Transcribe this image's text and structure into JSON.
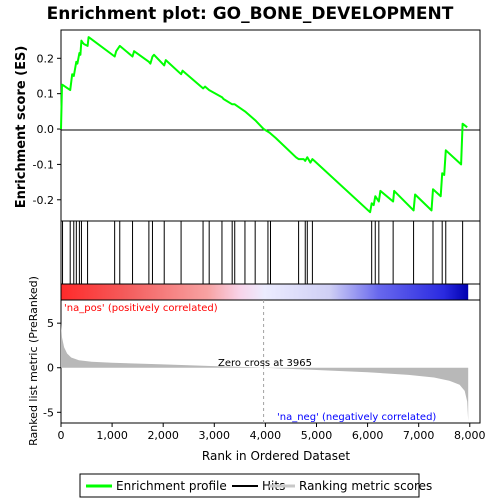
{
  "chart_data": {
    "type": "line",
    "title": "Enrichment plot: GO_BONE_DEVELOPMENT",
    "top_panel": {
      "ylabel": "Enrichment score (ES)",
      "ylim": [
        -0.26,
        0.28
      ],
      "yticks": [
        -0.2,
        -0.1,
        0.0,
        0.1,
        0.2
      ],
      "ytick_labels": [
        "-0.2",
        "-0.1",
        "0.0",
        "0.1",
        "0.2"
      ],
      "series": [
        {
          "name": "Enrichment profile",
          "color": "#00ff00",
          "x": [
            0,
            20,
            30,
            180,
            220,
            250,
            300,
            320,
            360,
            380,
            400,
            420,
            450,
            520,
            540,
            560,
            1050,
            1080,
            1150,
            1400,
            1430,
            1720,
            1750,
            1790,
            1820,
            2020,
            2050,
            2350,
            2380,
            2780,
            2820,
            2900,
            3150,
            3180,
            3350,
            3400,
            3600,
            3800,
            3965,
            4080,
            4200,
            4600,
            4650,
            4750,
            4780,
            4820,
            4880,
            4920,
            4960,
            6050,
            6080,
            6120,
            6150,
            6220,
            6250,
            6500,
            6520,
            6900,
            6930,
            7250,
            7280,
            7430,
            7460,
            7500,
            7530,
            7830,
            7860,
            7950
          ],
          "y": [
            0.0,
            0.125,
            0.125,
            0.11,
            0.155,
            0.15,
            0.19,
            0.185,
            0.215,
            0.21,
            0.25,
            0.245,
            0.24,
            0.235,
            0.26,
            0.258,
            0.205,
            0.22,
            0.235,
            0.205,
            0.22,
            0.19,
            0.185,
            0.205,
            0.21,
            0.18,
            0.195,
            0.155,
            0.165,
            0.115,
            0.12,
            0.11,
            0.09,
            0.085,
            0.07,
            0.07,
            0.05,
            0.025,
            0.0,
            -0.01,
            -0.025,
            -0.08,
            -0.085,
            -0.085,
            -0.09,
            -0.08,
            -0.095,
            -0.085,
            -0.09,
            -0.235,
            -0.21,
            -0.215,
            -0.19,
            -0.205,
            -0.175,
            -0.205,
            -0.175,
            -0.23,
            -0.185,
            -0.23,
            -0.17,
            -0.19,
            -0.125,
            -0.13,
            -0.06,
            -0.1,
            0.015,
            0.005
          ]
        }
      ]
    },
    "hits": {
      "name": "Hits",
      "positions": [
        30,
        180,
        250,
        300,
        360,
        400,
        520,
        1050,
        1150,
        1400,
        1720,
        1790,
        2020,
        2350,
        2780,
        2900,
        3150,
        3350,
        3400,
        3600,
        3800,
        4050,
        4100,
        4650,
        4780,
        4820,
        4920,
        6080,
        6150,
        6220,
        6500,
        6900,
        7280,
        7460,
        7530,
        7860
      ]
    },
    "ranking": {
      "name": "Ranking metric scores",
      "ylabel": "Ranked list metric (PreRanked)",
      "ylim": [
        -6.2,
        7.6
      ],
      "yticks": [
        -5,
        0,
        5
      ],
      "ytick_labels": [
        "-5",
        "0",
        "5"
      ],
      "shape": [
        [
          0,
          5.0
        ],
        [
          20,
          3.4
        ],
        [
          60,
          2.3
        ],
        [
          120,
          1.6
        ],
        [
          200,
          1.15
        ],
        [
          350,
          0.85
        ],
        [
          600,
          0.68
        ],
        [
          1000,
          0.55
        ],
        [
          2000,
          0.38
        ],
        [
          3000,
          0.18
        ],
        [
          3965,
          0.0
        ],
        [
          5000,
          -0.25
        ],
        [
          6000,
          -0.5
        ],
        [
          6800,
          -0.8
        ],
        [
          7300,
          -1.1
        ],
        [
          7600,
          -1.45
        ],
        [
          7800,
          -1.9
        ],
        [
          7900,
          -2.6
        ],
        [
          7950,
          -3.8
        ],
        [
          7970,
          -6.0
        ]
      ],
      "zero_cross_label": "Zero cross at 3965",
      "zero_cross": 3965,
      "pos_label": "'na_pos' (positively correlated)",
      "neg_label": "'na_neg' (negatively correlated)"
    },
    "xlabel": "Rank in Ordered Dataset",
    "xlim": [
      0,
      8200
    ],
    "xticks": [
      0,
      1000,
      2000,
      3000,
      4000,
      5000,
      6000,
      7000,
      8000
    ],
    "xtick_labels": [
      "0",
      "1,000",
      "2,000",
      "3,000",
      "4,000",
      "5,000",
      "6,000",
      "7,000",
      "8,000"
    ],
    "n_genes": 7970,
    "legend": {
      "placement": "bottom",
      "entries": [
        {
          "label": "Enrichment profile",
          "color": "#00ff00"
        },
        {
          "label": "Hits",
          "color": "#000000"
        },
        {
          "label": "Ranking metric scores",
          "color": "#c8c8c8"
        }
      ]
    },
    "colors": {
      "profile": "#00ff00",
      "pos_label": "#ff0000",
      "neg_label": "#0000ff",
      "ranking_fill": "#b8b8b8",
      "zero_line": "#a0a0a0"
    }
  }
}
